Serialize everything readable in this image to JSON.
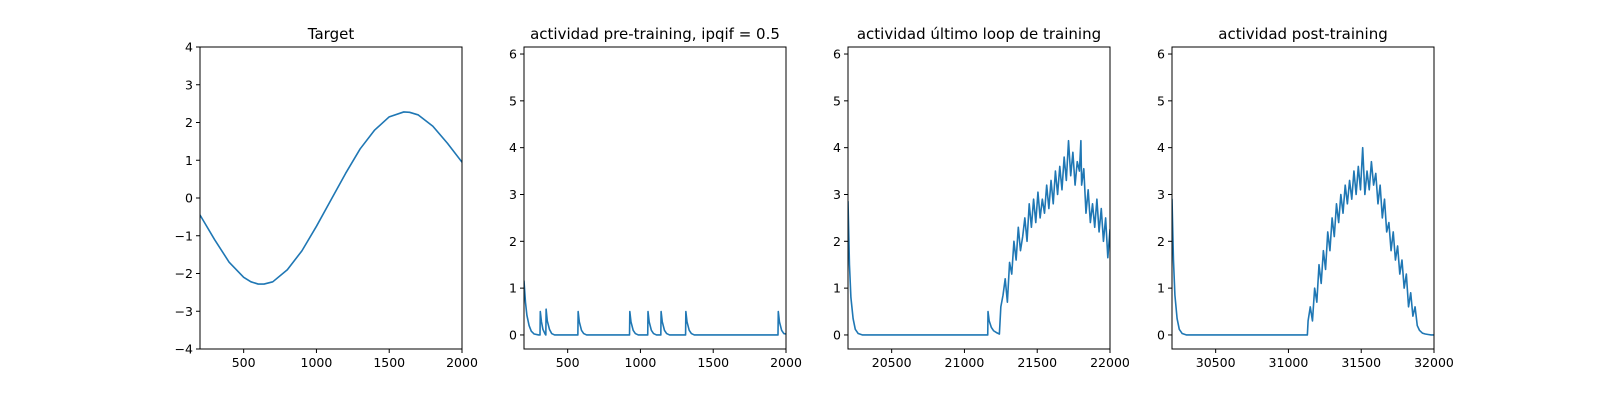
{
  "colors": {
    "series": "#1f77b4",
    "axes": "#000000",
    "background": "#ffffff"
  },
  "chart_data": [
    {
      "type": "line",
      "title": "Target",
      "xlim": [
        200,
        2000
      ],
      "ylim": [
        -4,
        4
      ],
      "xticks": [
        500,
        1000,
        1500,
        2000
      ],
      "yticks": [
        -4,
        -3,
        -2,
        -1,
        0,
        1,
        2,
        3,
        4
      ],
      "xtick_labels": [
        "500",
        "1000",
        "1500",
        "2000"
      ],
      "ytick_labels": [
        "−4",
        "−3",
        "−2",
        "−1",
        "0",
        "1",
        "2",
        "3",
        "4"
      ],
      "grid": false,
      "series": [
        {
          "x": [
            200,
            300,
            400,
            500,
            550,
            600,
            640,
            700,
            800,
            900,
            1000,
            1100,
            1200,
            1300,
            1400,
            1500,
            1600,
            1640,
            1700,
            1800,
            1900,
            2000
          ],
          "y": [
            -0.45,
            -1.1,
            -1.7,
            -2.1,
            -2.22,
            -2.28,
            -2.28,
            -2.22,
            -1.9,
            -1.4,
            -0.75,
            -0.05,
            0.65,
            1.3,
            1.8,
            2.15,
            2.28,
            2.27,
            2.2,
            1.9,
            1.45,
            0.95
          ]
        }
      ]
    },
    {
      "type": "line",
      "title": "actividad pre-training, ipqif = 0.5",
      "xlim": [
        200,
        2000
      ],
      "ylim": [
        -0.3,
        6.15
      ],
      "xticks": [
        500,
        1000,
        1500,
        2000
      ],
      "yticks": [
        0,
        1,
        2,
        3,
        4,
        5,
        6
      ],
      "xtick_labels": [
        "500",
        "1000",
        "1500",
        "2000"
      ],
      "ytick_labels": [
        "0",
        "1",
        "2",
        "3",
        "4",
        "5",
        "6"
      ],
      "grid": false,
      "series": [
        {
          "x": [
            200,
            210,
            220,
            235,
            250,
            270,
            300,
            310,
            312,
            320,
            330,
            345,
            350,
            352,
            360,
            375,
            390,
            410,
            570,
            572,
            580,
            595,
            610,
            630,
            925,
            927,
            935,
            950,
            965,
            985,
            1050,
            1052,
            1060,
            1075,
            1090,
            1110,
            1140,
            1142,
            1150,
            1165,
            1180,
            1200,
            1310,
            1312,
            1320,
            1335,
            1350,
            1370,
            1945,
            1947,
            1955,
            1970,
            1985,
            2000
          ],
          "y": [
            1.15,
            0.7,
            0.42,
            0.2,
            0.08,
            0.02,
            0.0,
            0.0,
            0.5,
            0.28,
            0.12,
            0.02,
            0.0,
            0.55,
            0.3,
            0.12,
            0.03,
            0.0,
            0.0,
            0.5,
            0.28,
            0.1,
            0.03,
            0.0,
            0.0,
            0.5,
            0.28,
            0.1,
            0.03,
            0.0,
            0.0,
            0.5,
            0.28,
            0.1,
            0.03,
            0.0,
            0.0,
            0.5,
            0.28,
            0.1,
            0.03,
            0.0,
            0.0,
            0.5,
            0.28,
            0.1,
            0.03,
            0.0,
            0.0,
            0.5,
            0.28,
            0.1,
            0.03,
            0.02
          ]
        }
      ]
    },
    {
      "type": "line",
      "title": "actividad último loop de training",
      "xlim": [
        20200,
        22000
      ],
      "ylim": [
        -0.3,
        6.15
      ],
      "xticks": [
        20500,
        21000,
        21500,
        22000
      ],
      "yticks": [
        0,
        1,
        2,
        3,
        4,
        5,
        6
      ],
      "xtick_labels": [
        "20500",
        "21000",
        "21500",
        "22000"
      ],
      "ytick_labels": [
        "0",
        "1",
        "2",
        "3",
        "4",
        "5",
        "6"
      ],
      "grid": false,
      "series": [
        {
          "x": [
            20200,
            20210,
            20220,
            20235,
            20250,
            20270,
            20300,
            21160,
            21162,
            21170,
            21185,
            21200,
            21220,
            21240,
            21250,
            21265,
            21280,
            21295,
            21310,
            21325,
            21340,
            21355,
            21370,
            21385,
            21400,
            21415,
            21430,
            21445,
            21460,
            21475,
            21490,
            21505,
            21520,
            21535,
            21550,
            21565,
            21580,
            21595,
            21610,
            21625,
            21640,
            21655,
            21670,
            21685,
            21700,
            21715,
            21730,
            21745,
            21760,
            21775,
            21790,
            21800,
            21805,
            21820,
            21835,
            21850,
            21865,
            21880,
            21895,
            21910,
            21925,
            21940,
            21955,
            21970,
            21985,
            22000
          ],
          "y": [
            2.85,
            1.5,
            0.8,
            0.35,
            0.12,
            0.03,
            0.0,
            0.0,
            0.5,
            0.3,
            0.16,
            0.09,
            0.05,
            0.02,
            0.6,
            0.85,
            1.2,
            0.7,
            1.55,
            1.3,
            2.0,
            1.6,
            2.3,
            1.8,
            2.1,
            2.5,
            2.0,
            2.8,
            2.3,
            2.9,
            2.4,
            3.05,
            2.5,
            2.9,
            2.6,
            3.2,
            2.7,
            3.3,
            2.8,
            3.5,
            3.0,
            3.6,
            3.1,
            3.8,
            3.3,
            4.15,
            3.4,
            3.9,
            3.2,
            3.7,
            3.5,
            4.15,
            3.2,
            3.55,
            2.6,
            3.1,
            2.4,
            2.8,
            2.3,
            2.9,
            2.2,
            2.7,
            2.0,
            2.5,
            1.65,
            2.25
          ]
        }
      ]
    },
    {
      "type": "line",
      "title": "actividad post-training",
      "xlim": [
        30200,
        32000
      ],
      "ylim": [
        -0.3,
        6.15
      ],
      "xticks": [
        30500,
        31000,
        31500,
        32000
      ],
      "yticks": [
        0,
        1,
        2,
        3,
        4,
        5,
        6
      ],
      "xtick_labels": [
        "30500",
        "31000",
        "31500",
        "32000"
      ],
      "ytick_labels": [
        "0",
        "1",
        "2",
        "3",
        "4",
        "5",
        "6"
      ],
      "grid": false,
      "series": [
        {
          "x": [
            30200,
            30210,
            30220,
            30235,
            30250,
            30270,
            30300,
            31130,
            31135,
            31150,
            31165,
            31180,
            31195,
            31210,
            31225,
            31240,
            31255,
            31270,
            31285,
            31300,
            31315,
            31330,
            31345,
            31360,
            31375,
            31390,
            31405,
            31420,
            31435,
            31450,
            31465,
            31480,
            31495,
            31510,
            31525,
            31540,
            31555,
            31570,
            31585,
            31600,
            31615,
            31630,
            31645,
            31660,
            31675,
            31690,
            31705,
            31720,
            31735,
            31750,
            31765,
            31780,
            31795,
            31810,
            31825,
            31840,
            31855,
            31870,
            31885,
            31900,
            31920,
            31940,
            31960,
            31980,
            32000
          ],
          "y": [
            2.9,
            1.6,
            0.85,
            0.35,
            0.12,
            0.03,
            0.0,
            0.0,
            0.3,
            0.6,
            0.3,
            1.0,
            0.7,
            1.5,
            1.1,
            1.8,
            1.4,
            2.2,
            1.8,
            2.5,
            2.1,
            2.8,
            2.4,
            3.0,
            2.6,
            3.2,
            2.8,
            3.3,
            2.9,
            3.5,
            3.0,
            3.6,
            3.1,
            4.0,
            3.0,
            3.5,
            3.1,
            3.7,
            3.2,
            3.45,
            2.8,
            3.2,
            2.5,
            2.9,
            2.2,
            2.4,
            1.8,
            2.2,
            1.6,
            1.9,
            1.3,
            1.6,
            1.0,
            1.3,
            0.6,
            0.9,
            0.4,
            0.6,
            0.2,
            0.1,
            0.04,
            0.02,
            0.01,
            0.0,
            0.0
          ]
        }
      ]
    }
  ]
}
